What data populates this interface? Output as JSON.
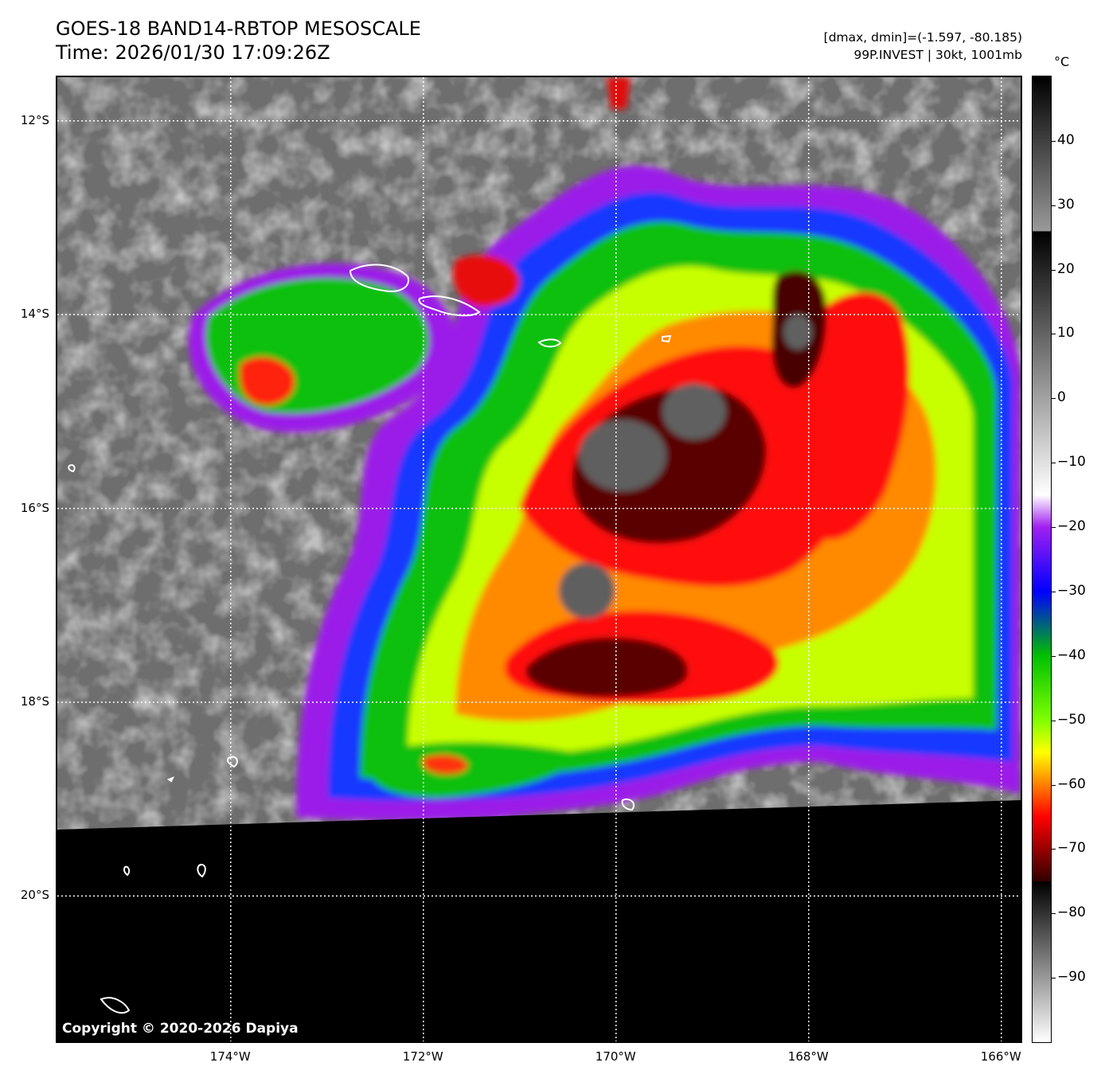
{
  "header": {
    "title_line1": "GOES-18 BAND14-RBTOP MESOSCALE",
    "title_line2": "Time: 2026/01/30 17:09:26Z",
    "info_line1": "[dmax, dmin]=(-1.597, -80.185)",
    "info_line2": "99P.INVEST | 30kt, 1001mb"
  },
  "map": {
    "extent": {
      "lon_min": -175.8,
      "lon_max": -165.8,
      "lat_min": -21.5,
      "lat_max": -11.55
    },
    "latitudes": [
      {
        "value": -12,
        "label": "12°S"
      },
      {
        "value": -14,
        "label": "14°S"
      },
      {
        "value": -16,
        "label": "16°S"
      },
      {
        "value": -18,
        "label": "18°S"
      },
      {
        "value": -20,
        "label": "20°S"
      }
    ],
    "longitudes": [
      {
        "value": -174,
        "label": "174°W"
      },
      {
        "value": -172,
        "label": "172°W"
      },
      {
        "value": -170,
        "label": "170°W"
      },
      {
        "value": -168,
        "label": "168°W"
      },
      {
        "value": -166,
        "label": "166°W"
      }
    ],
    "copyright": "Copyright © 2020-2026 Dapiya",
    "colors": {
      "background_gray": "#707070",
      "no_data": "#000000",
      "coastline": "#ffffff",
      "gridline": "#ffffff"
    }
  },
  "colorbar": {
    "unit": "°C",
    "min": -100,
    "max": 50,
    "ticks": [
      {
        "value": 40,
        "label": "40"
      },
      {
        "value": 30,
        "label": "30"
      },
      {
        "value": 20,
        "label": "20"
      },
      {
        "value": 10,
        "label": "10"
      },
      {
        "value": 0,
        "label": "0"
      },
      {
        "value": -10,
        "label": "−10"
      },
      {
        "value": -20,
        "label": "−20"
      },
      {
        "value": -30,
        "label": "−30"
      },
      {
        "value": -40,
        "label": "−40"
      },
      {
        "value": -50,
        "label": "−50"
      },
      {
        "value": -60,
        "label": "−60"
      },
      {
        "value": -70,
        "label": "−70"
      },
      {
        "value": -80,
        "label": "−80"
      },
      {
        "value": -90,
        "label": "−90"
      }
    ],
    "stops": [
      {
        "value": 50,
        "color": "#000000"
      },
      {
        "value": 26,
        "color": "#999999"
      },
      {
        "value": 25.9,
        "color": "#000000"
      },
      {
        "value": -15,
        "color": "#ffffff"
      },
      {
        "value": -20,
        "color": "#a020f0"
      },
      {
        "value": -30,
        "color": "#0000ff"
      },
      {
        "value": -40,
        "color": "#00c000"
      },
      {
        "value": -50,
        "color": "#80ff00"
      },
      {
        "value": -55,
        "color": "#ffff00"
      },
      {
        "value": -60,
        "color": "#ff8000"
      },
      {
        "value": -65,
        "color": "#ff0000"
      },
      {
        "value": -75,
        "color": "#300000"
      },
      {
        "value": -75.1,
        "color": "#000000"
      },
      {
        "value": -100,
        "color": "#ffffff"
      }
    ]
  }
}
